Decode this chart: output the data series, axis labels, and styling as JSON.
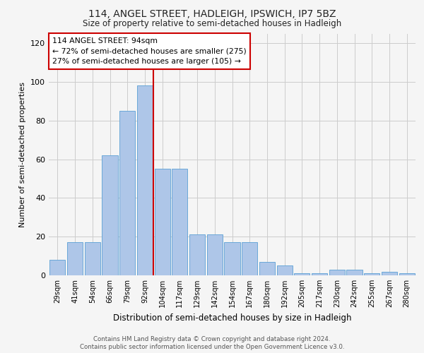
{
  "title_line1": "114, ANGEL STREET, HADLEIGH, IPSWICH, IP7 5BZ",
  "title_line2": "Size of property relative to semi-detached houses in Hadleigh",
  "xlabel": "Distribution of semi-detached houses by size in Hadleigh",
  "ylabel": "Number of semi-detached properties",
  "categories": [
    "29sqm",
    "41sqm",
    "54sqm",
    "66sqm",
    "79sqm",
    "92sqm",
    "104sqm",
    "117sqm",
    "129sqm",
    "142sqm",
    "154sqm",
    "167sqm",
    "180sqm",
    "192sqm",
    "205sqm",
    "217sqm",
    "230sqm",
    "242sqm",
    "255sqm",
    "267sqm",
    "280sqm"
  ],
  "values": [
    8,
    17,
    17,
    62,
    85,
    98,
    55,
    55,
    21,
    21,
    17,
    17,
    7,
    5,
    1,
    1,
    3,
    3,
    1,
    2,
    1
  ],
  "bar_color": "#aec6e8",
  "bar_edge_color": "#5a9fd4",
  "property_bin_index": 5,
  "vline_color": "#cc0000",
  "annotation_text": "114 ANGEL STREET: 94sqm\n← 72% of semi-detached houses are smaller (275)\n27% of semi-detached houses are larger (105) →",
  "annotation_box_color": "#ffffff",
  "annotation_box_edge": "#cc0000",
  "ylim": [
    0,
    125
  ],
  "yticks": [
    0,
    20,
    40,
    60,
    80,
    100,
    120
  ],
  "footer_line1": "Contains HM Land Registry data © Crown copyright and database right 2024.",
  "footer_line2": "Contains public sector information licensed under the Open Government Licence v3.0.",
  "background_color": "#f5f5f5",
  "grid_color": "#cccccc"
}
